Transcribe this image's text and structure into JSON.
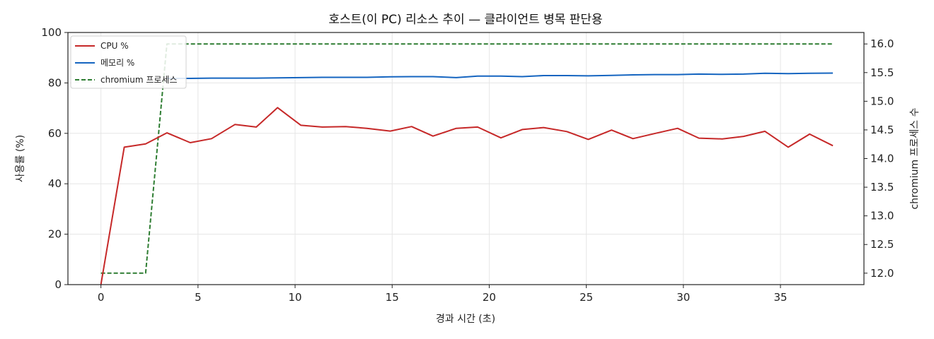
{
  "chart_data": {
    "type": "line",
    "title": "호스트(이 PC) 리소스 추이 — 클라이언트 병목 판단용",
    "xlabel": "경과 시간 (초)",
    "ylabel": "사용률 (%)",
    "y2label": "chromium 프로세스 수",
    "xlim": [
      -1.7,
      39.3
    ],
    "ylim": [
      0,
      100
    ],
    "y2lim": [
      11.8,
      16.2
    ],
    "xticks": [
      0,
      5,
      10,
      15,
      20,
      25,
      30,
      35
    ],
    "yticks": [
      0,
      20,
      40,
      60,
      80,
      100
    ],
    "y2ticks": [
      "12.0",
      "12.5",
      "13.0",
      "13.5",
      "14.0",
      "14.5",
      "15.0",
      "15.5",
      "16.0"
    ],
    "grid": true,
    "legend_position": "top-left",
    "series": [
      {
        "name": "CPU %",
        "axis": "left",
        "color": "#c62828",
        "style": "solid",
        "x": [
          0,
          1.2,
          2.3,
          3.4,
          4.6,
          5.7,
          6.9,
          8.0,
          9.1,
          10.3,
          11.4,
          12.6,
          13.7,
          14.9,
          16.0,
          17.1,
          18.3,
          19.4,
          20.6,
          21.7,
          22.8,
          24.0,
          25.1,
          26.3,
          27.4,
          28.5,
          29.7,
          30.8,
          32.0,
          33.1,
          34.2,
          35.4,
          36.5,
          37.7
        ],
        "values": [
          0,
          54.5,
          55.8,
          60.2,
          56.3,
          57.9,
          63.5,
          62.5,
          70.2,
          63.2,
          62.5,
          62.7,
          62.0,
          60.9,
          62.7,
          58.9,
          62.0,
          62.5,
          58.2,
          61.5,
          62.3,
          60.7,
          57.6,
          61.3,
          57.9,
          59.9,
          62.0,
          58.1,
          57.8,
          58.8,
          60.8,
          54.5,
          59.7,
          55.1
        ]
      },
      {
        "name": "메모리 %",
        "axis": "left",
        "color": "#1565c0",
        "style": "solid",
        "x": [
          3.4,
          4.6,
          5.7,
          6.9,
          8.0,
          9.1,
          10.3,
          11.4,
          12.6,
          13.7,
          14.9,
          16.0,
          17.1,
          18.3,
          19.4,
          20.6,
          21.7,
          22.8,
          24.0,
          25.1,
          26.3,
          27.4,
          28.5,
          29.7,
          30.8,
          32.0,
          33.1,
          34.2,
          35.4,
          36.5,
          37.7
        ],
        "values": [
          81.8,
          81.8,
          81.9,
          81.9,
          81.9,
          82.0,
          82.1,
          82.2,
          82.2,
          82.2,
          82.4,
          82.5,
          82.5,
          82.1,
          82.7,
          82.7,
          82.5,
          82.9,
          82.9,
          82.8,
          83.0,
          83.2,
          83.3,
          83.3,
          83.5,
          83.4,
          83.5,
          83.8,
          83.7,
          83.8,
          83.9
        ]
      },
      {
        "name": "chromium 프로세스",
        "axis": "right",
        "color": "#2e7d32",
        "style": "dashed",
        "x": [
          0,
          2.3,
          3.4,
          37.7
        ],
        "values": [
          12,
          12,
          16,
          16
        ]
      }
    ]
  }
}
